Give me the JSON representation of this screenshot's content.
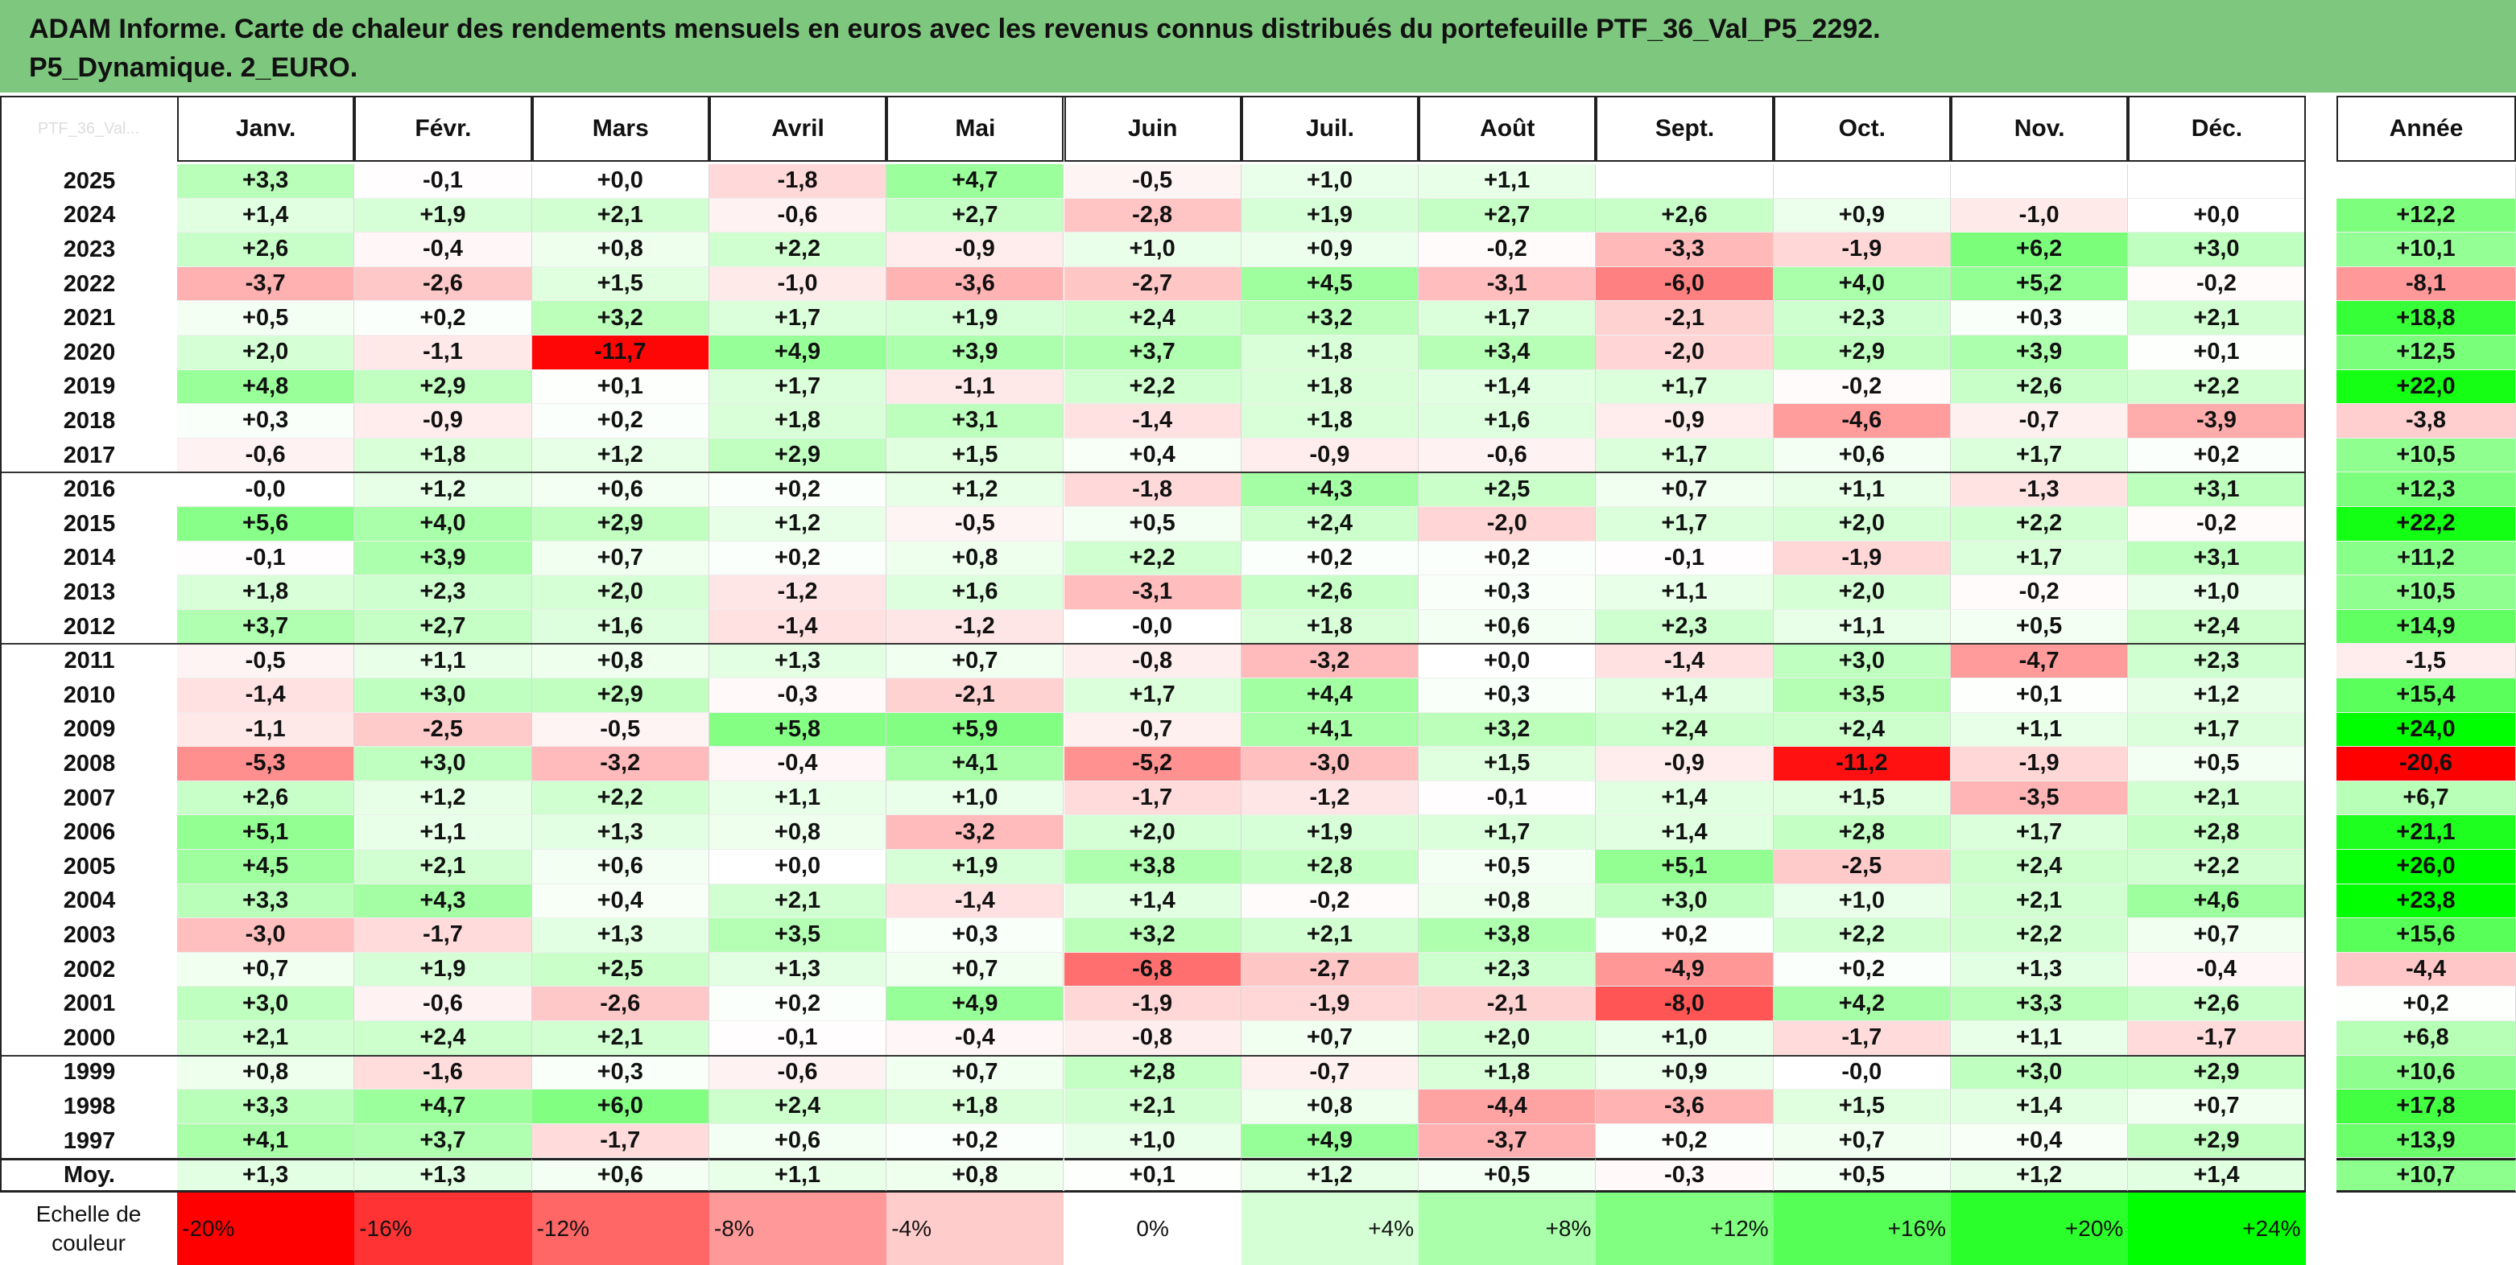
{
  "title": {
    "line1": "ADAM Informe. Carte de chaleur des rendements mensuels en euros avec les revenus connus distribués du portefeuille PTF_36_Val_P5_2292.",
    "line2": "P5_Dynamique. 2_EURO."
  },
  "colors": {
    "title_bg": "#7ec77e",
    "negative_max": "#ff0000",
    "neutral": "#ffffff",
    "positive_max": "#00ff00"
  },
  "chart_data": {
    "type": "heatmap",
    "title": "ADAM Informe. Carte de chaleur des rendements mensuels en euros avec les revenus connus distribués du portefeuille PTF_36_Val_P5_2292. P5_Dynamique. 2_EURO.",
    "corner_label": "PTF_36_Val...",
    "columns": [
      "Janv.",
      "Févr.",
      "Mars",
      "Avril",
      "Mai",
      "Juin",
      "Juil.",
      "Août",
      "Sept.",
      "Oct.",
      "Nov.",
      "Déc."
    ],
    "year_column": "Année",
    "rows": [
      {
        "label": "2025",
        "values": [
          "+3,3",
          "-0,1",
          "+0,0",
          "-1,8",
          "+4,7",
          "-0,5",
          "+1,0",
          "+1,1",
          "",
          "",
          "",
          ""
        ],
        "year": ""
      },
      {
        "label": "2024",
        "values": [
          "+1,4",
          "+1,9",
          "+2,1",
          "-0,6",
          "+2,7",
          "-2,8",
          "+1,9",
          "+2,7",
          "+2,6",
          "+0,9",
          "-1,0",
          "+0,0"
        ],
        "year": "+12,2"
      },
      {
        "label": "2023",
        "values": [
          "+2,6",
          "-0,4",
          "+0,8",
          "+2,2",
          "-0,9",
          "+1,0",
          "+0,9",
          "-0,2",
          "-3,3",
          "-1,9",
          "+6,2",
          "+3,0"
        ],
        "year": "+10,1"
      },
      {
        "label": "2022",
        "values": [
          "-3,7",
          "-2,6",
          "+1,5",
          "-1,0",
          "-3,6",
          "-2,7",
          "+4,5",
          "-3,1",
          "-6,0",
          "+4,0",
          "+5,2",
          "-0,2"
        ],
        "year": "-8,1"
      },
      {
        "label": "2021",
        "values": [
          "+0,5",
          "+0,2",
          "+3,2",
          "+1,7",
          "+1,9",
          "+2,4",
          "+3,2",
          "+1,7",
          "-2,1",
          "+2,3",
          "+0,3",
          "+2,1"
        ],
        "year": "+18,8"
      },
      {
        "label": "2020",
        "values": [
          "+2,0",
          "-1,1",
          "-11,7",
          "+4,9",
          "+3,9",
          "+3,7",
          "+1,8",
          "+3,4",
          "-2,0",
          "+2,9",
          "+3,9",
          "+0,1"
        ],
        "year": "+12,5"
      },
      {
        "label": "2019",
        "values": [
          "+4,8",
          "+2,9",
          "+0,1",
          "+1,7",
          "-1,1",
          "+2,2",
          "+1,8",
          "+1,4",
          "+1,7",
          "-0,2",
          "+2,6",
          "+2,2"
        ],
        "year": "+22,0"
      },
      {
        "label": "2018",
        "values": [
          "+0,3",
          "-0,9",
          "+0,2",
          "+1,8",
          "+3,1",
          "-1,4",
          "+1,8",
          "+1,6",
          "-0,9",
          "-4,6",
          "-0,7",
          "-3,9"
        ],
        "year": "-3,8"
      },
      {
        "label": "2017",
        "values": [
          "-0,6",
          "+1,8",
          "+1,2",
          "+2,9",
          "+1,5",
          "+0,4",
          "-0,9",
          "-0,6",
          "+1,7",
          "+0,6",
          "+1,7",
          "+0,2"
        ],
        "year": "+10,5"
      },
      {
        "label": "2016",
        "values": [
          "-0,0",
          "+1,2",
          "+0,6",
          "+0,2",
          "+1,2",
          "-1,8",
          "+4,3",
          "+2,5",
          "+0,7",
          "+1,1",
          "-1,3",
          "+3,1"
        ],
        "year": "+12,3"
      },
      {
        "label": "2015",
        "values": [
          "+5,6",
          "+4,0",
          "+2,9",
          "+1,2",
          "-0,5",
          "+0,5",
          "+2,4",
          "-2,0",
          "+1,7",
          "+2,0",
          "+2,2",
          "-0,2"
        ],
        "year": "+22,2"
      },
      {
        "label": "2014",
        "values": [
          "-0,1",
          "+3,9",
          "+0,7",
          "+0,2",
          "+0,8",
          "+2,2",
          "+0,2",
          "+0,2",
          "-0,1",
          "-1,9",
          "+1,7",
          "+3,1"
        ],
        "year": "+11,2"
      },
      {
        "label": "2013",
        "values": [
          "+1,8",
          "+2,3",
          "+2,0",
          "-1,2",
          "+1,6",
          "-3,1",
          "+2,6",
          "+0,3",
          "+1,1",
          "+2,0",
          "-0,2",
          "+1,0"
        ],
        "year": "+10,5"
      },
      {
        "label": "2012",
        "values": [
          "+3,7",
          "+2,7",
          "+1,6",
          "-1,4",
          "-1,2",
          "-0,0",
          "+1,8",
          "+0,6",
          "+2,3",
          "+1,1",
          "+0,5",
          "+2,4"
        ],
        "year": "+14,9"
      },
      {
        "label": "2011",
        "values": [
          "-0,5",
          "+1,1",
          "+0,8",
          "+1,3",
          "+0,7",
          "-0,8",
          "-3,2",
          "+0,0",
          "-1,4",
          "+3,0",
          "-4,7",
          "+2,3"
        ],
        "year": "-1,5"
      },
      {
        "label": "2010",
        "values": [
          "-1,4",
          "+3,0",
          "+2,9",
          "-0,3",
          "-2,1",
          "+1,7",
          "+4,4",
          "+0,3",
          "+1,4",
          "+3,5",
          "+0,1",
          "+1,2"
        ],
        "year": "+15,4"
      },
      {
        "label": "2009",
        "values": [
          "-1,1",
          "-2,5",
          "-0,5",
          "+5,8",
          "+5,9",
          "-0,7",
          "+4,1",
          "+3,2",
          "+2,4",
          "+2,4",
          "+1,1",
          "+1,7"
        ],
        "year": "+24,0"
      },
      {
        "label": "2008",
        "values": [
          "-5,3",
          "+3,0",
          "-3,2",
          "-0,4",
          "+4,1",
          "-5,2",
          "-3,0",
          "+1,5",
          "-0,9",
          "-11,2",
          "-1,9",
          "+0,5"
        ],
        "year": "-20,6"
      },
      {
        "label": "2007",
        "values": [
          "+2,6",
          "+1,2",
          "+2,2",
          "+1,1",
          "+1,0",
          "-1,7",
          "-1,2",
          "-0,1",
          "+1,4",
          "+1,5",
          "-3,5",
          "+2,1"
        ],
        "year": "+6,7"
      },
      {
        "label": "2006",
        "values": [
          "+5,1",
          "+1,1",
          "+1,3",
          "+0,8",
          "-3,2",
          "+2,0",
          "+1,9",
          "+1,7",
          "+1,4",
          "+2,8",
          "+1,7",
          "+2,8"
        ],
        "year": "+21,1"
      },
      {
        "label": "2005",
        "values": [
          "+4,5",
          "+2,1",
          "+0,6",
          "+0,0",
          "+1,9",
          "+3,8",
          "+2,8",
          "+0,5",
          "+5,1",
          "-2,5",
          "+2,4",
          "+2,2"
        ],
        "year": "+26,0"
      },
      {
        "label": "2004",
        "values": [
          "+3,3",
          "+4,3",
          "+0,4",
          "+2,1",
          "-1,4",
          "+1,4",
          "-0,2",
          "+0,8",
          "+3,0",
          "+1,0",
          "+2,1",
          "+4,6"
        ],
        "year": "+23,8"
      },
      {
        "label": "2003",
        "values": [
          "-3,0",
          "-1,7",
          "+1,3",
          "+3,5",
          "+0,3",
          "+3,2",
          "+2,1",
          "+3,8",
          "+0,2",
          "+2,2",
          "+2,2",
          "+0,7"
        ],
        "year": "+15,6"
      },
      {
        "label": "2002",
        "values": [
          "+0,7",
          "+1,9",
          "+2,5",
          "+1,3",
          "+0,7",
          "-6,8",
          "-2,7",
          "+2,3",
          "-4,9",
          "+0,2",
          "+1,3",
          "-0,4"
        ],
        "year": "-4,4"
      },
      {
        "label": "2001",
        "values": [
          "+3,0",
          "-0,6",
          "-2,6",
          "+0,2",
          "+4,9",
          "-1,9",
          "-1,9",
          "-2,1",
          "-8,0",
          "+4,2",
          "+3,3",
          "+2,6"
        ],
        "year": "+0,2"
      },
      {
        "label": "2000",
        "values": [
          "+2,1",
          "+2,4",
          "+2,1",
          "-0,1",
          "-0,4",
          "-0,8",
          "+0,7",
          "+2,0",
          "+1,0",
          "-1,7",
          "+1,1",
          "-1,7"
        ],
        "year": "+6,8"
      },
      {
        "label": "1999",
        "values": [
          "+0,8",
          "-1,6",
          "+0,3",
          "-0,6",
          "+0,7",
          "+2,8",
          "-0,7",
          "+1,8",
          "+0,9",
          "-0,0",
          "+3,0",
          "+2,9"
        ],
        "year": "+10,6"
      },
      {
        "label": "1998",
        "values": [
          "+3,3",
          "+4,7",
          "+6,0",
          "+2,4",
          "+1,8",
          "+2,1",
          "+0,8",
          "-4,4",
          "-3,6",
          "+1,5",
          "+1,4",
          "+0,7"
        ],
        "year": "+17,8"
      },
      {
        "label": "1997",
        "values": [
          "+4,1",
          "+3,7",
          "-1,7",
          "+0,6",
          "+0,2",
          "+1,0",
          "+4,9",
          "-3,7",
          "+0,2",
          "+0,7",
          "+0,4",
          "+2,9"
        ],
        "year": "+13,9"
      }
    ],
    "average_row": {
      "label": "Moy.",
      "values": [
        "+1,3",
        "+1,3",
        "+0,6",
        "+1,1",
        "+0,8",
        "+0,1",
        "+1,2",
        "+0,5",
        "-0,3",
        "+0,5",
        "+1,2",
        "+1,4"
      ],
      "year": "+10,7"
    },
    "scale": {
      "label": "Echelle de couleur",
      "steps": [
        {
          "text": "-20%",
          "value": -20
        },
        {
          "text": "-16%",
          "value": -16
        },
        {
          "text": "-12%",
          "value": -12
        },
        {
          "text": "-8%",
          "value": -8
        },
        {
          "text": "-4%",
          "value": -4
        },
        {
          "text": "0%",
          "value": 0
        },
        {
          "text": "+4%",
          "value": 4
        },
        {
          "text": "+8%",
          "value": 8
        },
        {
          "text": "+12%",
          "value": 12
        },
        {
          "text": "+16%",
          "value": 16
        },
        {
          "text": "+20%",
          "value": 20
        },
        {
          "text": "+24%",
          "value": 24
        }
      ]
    },
    "monthly_scale_limits": [
      -12,
      12
    ],
    "yearly_scale_limits": [
      -20,
      24
    ]
  }
}
